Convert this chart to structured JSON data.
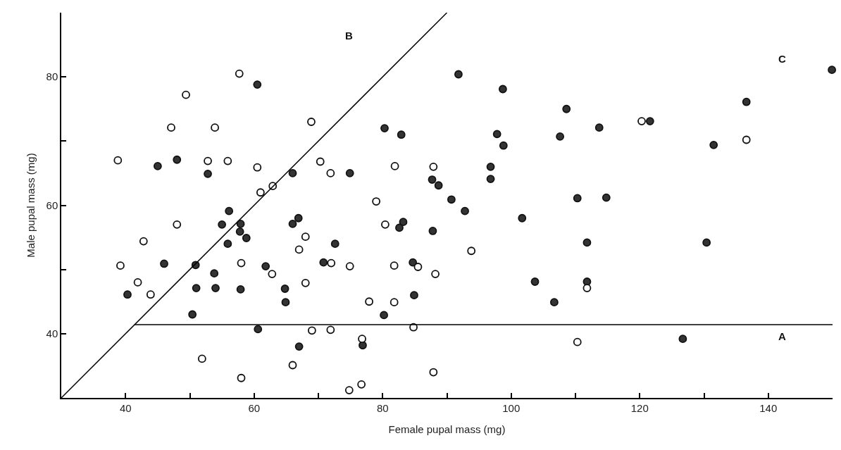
{
  "chart_data": {
    "type": "scatter",
    "xlabel": "Female pupal mass (mg)",
    "ylabel": "Male pupal mass (mg)",
    "xlim": [
      30,
      150
    ],
    "ylim": [
      30,
      90
    ],
    "xticks": [
      40,
      {
        "value": 50,
        "label": null
      },
      60,
      {
        "value": 70,
        "label": null
      },
      80,
      {
        "value": 90,
        "label": null
      },
      100,
      {
        "value": 110,
        "label": null
      },
      120,
      {
        "value": 130,
        "label": null
      },
      140
    ],
    "yticks": [
      40,
      {
        "value": 50,
        "label": null
      },
      60,
      {
        "value": 70,
        "label": null
      },
      80
    ],
    "marker": "circle",
    "series": [
      {
        "color": "#333333",
        "x": [
          60.5,
          45.0,
          48.0,
          52.8,
          66.0,
          56.1,
          55.0,
          57.9,
          66.0,
          66.9,
          57.8,
          58.8,
          55.9,
          46.0,
          50.9,
          61.8,
          70.8,
          53.8,
          40.3,
          51.0,
          54.0,
          57.9,
          64.8,
          64.9,
          50.4,
          60.6,
          67.0,
          91.8,
          98.7,
          108.6,
          80.3,
          82.9,
          97.8,
          98.8,
          107.6,
          74.9,
          96.8,
          87.7,
          88.7,
          96.8,
          110.3,
          90.7,
          92.8,
          101.7,
          83.2,
          82.6,
          87.8,
          72.6,
          84.7,
          103.7,
          111.8,
          111.8,
          106.7,
          84.9,
          80.2,
          76.9,
          149.9,
          136.6,
          121.6,
          113.7,
          131.5,
          114.8,
          130.4,
          126.7
        ],
        "values": [
          78.8,
          66.1,
          67.1,
          64.9,
          65.0,
          59.1,
          57.0,
          57.1,
          57.1,
          58.0,
          55.9,
          54.9,
          54.0,
          50.9,
          50.7,
          50.5,
          51.1,
          49.4,
          46.1,
          47.1,
          47.1,
          46.9,
          47.0,
          44.9,
          43.0,
          40.7,
          38.0,
          80.4,
          78.1,
          75.0,
          72.0,
          71.0,
          71.1,
          69.3,
          70.7,
          65.0,
          66.0,
          64.0,
          63.1,
          64.1,
          61.1,
          60.9,
          59.1,
          58.0,
          57.4,
          56.5,
          56.0,
          54.0,
          51.1,
          48.1,
          54.2,
          48.1,
          44.9,
          46.0,
          42.9,
          38.2,
          81.1,
          76.1,
          73.1,
          72.1,
          69.4,
          61.2,
          54.2,
          39.2
        ]
      },
      {
        "color": "#ffffff",
        "x": [
          57.7,
          49.4,
          47.1,
          53.9,
          68.9,
          38.8,
          52.8,
          55.9,
          60.5,
          70.3,
          62.9,
          61.0,
          48.0,
          68.0,
          67.0,
          42.8,
          39.2,
          58.0,
          62.8,
          41.9,
          43.9,
          68.0,
          69.0,
          51.9,
          66.0,
          58.0,
          71.9,
          81.9,
          87.9,
          79.0,
          80.4,
          72.0,
          74.9,
          81.8,
          85.5,
          88.2,
          93.8,
          111.8,
          77.9,
          81.8,
          71.9,
          84.8,
          76.8,
          110.3,
          87.9,
          76.7,
          74.8,
          120.3,
          136.6
        ],
        "values": [
          80.5,
          77.2,
          72.1,
          72.1,
          73.0,
          67.0,
          66.9,
          66.9,
          65.9,
          66.8,
          63.0,
          62.0,
          57.0,
          55.1,
          53.1,
          54.4,
          50.6,
          51.0,
          49.3,
          48.0,
          46.1,
          47.9,
          40.5,
          36.1,
          35.1,
          33.1,
          65.0,
          66.1,
          66.0,
          60.6,
          57.0,
          51.0,
          50.5,
          50.6,
          50.4,
          49.3,
          52.9,
          47.1,
          45.0,
          44.9,
          40.6,
          41.0,
          39.2,
          38.7,
          34.0,
          32.1,
          31.2,
          73.1,
          70.2
        ]
      },
      {
        "type": "line",
        "marker": "none",
        "color": "#000000",
        "x": [
          30,
          90
        ],
        "values": [
          30,
          90
        ]
      },
      {
        "type": "line",
        "marker": "none",
        "color": "#000000",
        "x": [
          41.4,
          150
        ],
        "values": [
          41.4,
          41.4
        ]
      }
    ],
    "annotations": [
      "B",
      "C",
      "A"
    ]
  }
}
